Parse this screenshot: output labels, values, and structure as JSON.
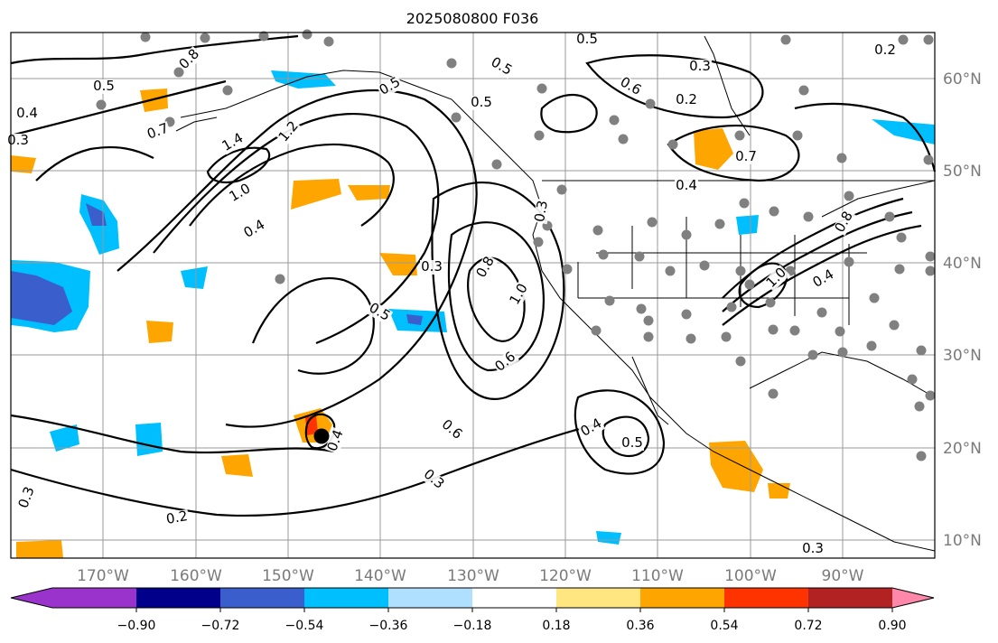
{
  "title": "2025080800 F036",
  "map": {
    "lon_labels": [
      "170°W",
      "160°W",
      "150°W",
      "140°W",
      "130°W",
      "120°W",
      "110°W",
      "100°W",
      "90°W"
    ],
    "lat_labels": [
      "60°N",
      "50°N",
      "40°N",
      "30°N",
      "20°N",
      "10°N"
    ],
    "contour_labels": [
      "0.8",
      "0.7",
      "0.5",
      "0.4",
      "0.3",
      "1.4",
      "1.2",
      "1.0",
      "0.4",
      "0.3",
      "0.5",
      "0.6",
      "0.8",
      "1.0",
      "0.6",
      "0.5",
      "0.4",
      "0.2",
      "0.3",
      "0.3",
      "0.4",
      "0.5",
      "0.8",
      "1.0",
      "0.7",
      "0.5",
      "0.3",
      "0.2",
      "0.3",
      "0.4",
      "0.6",
      "0.5",
      "0.4",
      "0.3",
      "0.5",
      "0.2"
    ]
  },
  "colorbar": {
    "tick_labels": [
      "−0.90",
      "−0.72",
      "−0.54",
      "−0.36",
      "−0.18",
      "0.18",
      "0.36",
      "0.54",
      "0.72",
      "0.90"
    ],
    "colors": [
      "#9933cc",
      "#00008b",
      "#3a5fcd",
      "#00bfff",
      "#b0e0ff",
      "#ffffff",
      "#ffe680",
      "#ffa500",
      "#ff3300",
      "#b22222",
      "#ff88aa"
    ]
  }
}
